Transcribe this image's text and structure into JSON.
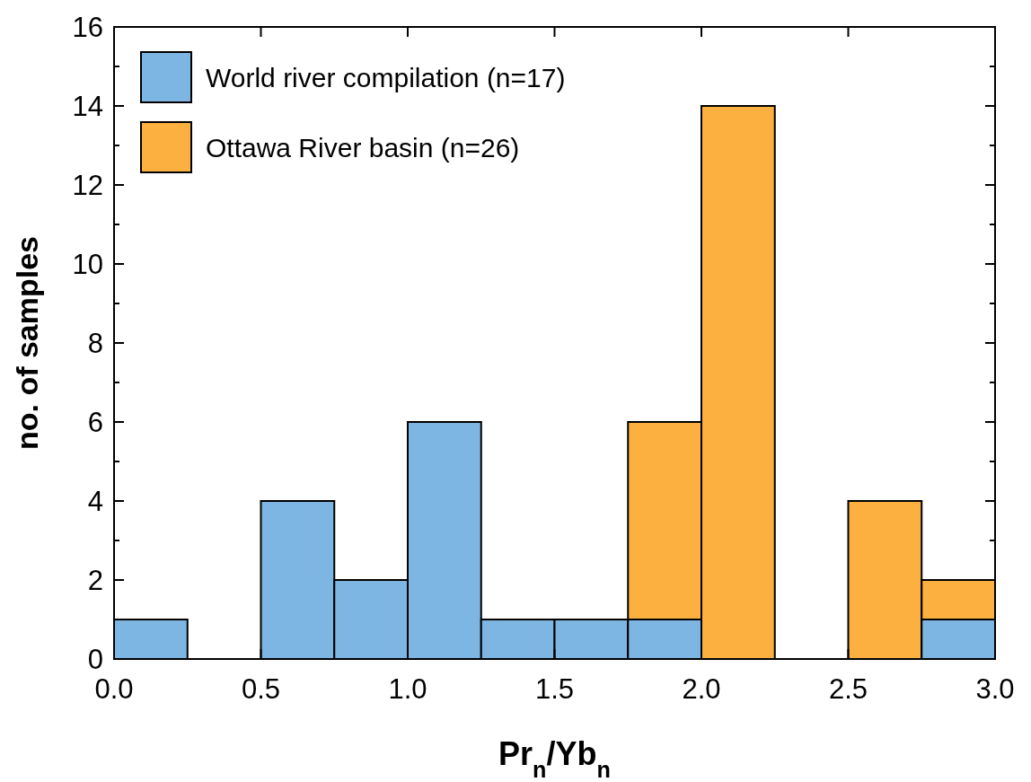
{
  "chart_data": {
    "type": "histogram",
    "xlabel": "Pr$_{n}$/Yb$_{n}$",
    "ylabel": "no. of samples",
    "bins": [
      0,
      0.25,
      0.5,
      0.75,
      1,
      1.25,
      1.5,
      1.75,
      2,
      2.25,
      2.5,
      2.75,
      3
    ],
    "series": [
      {
        "name": "World river compilation (n=17)",
        "color": "#7db6e3",
        "values": [
          1,
          0,
          4,
          2,
          6,
          1,
          1,
          1,
          0,
          0,
          0,
          1
        ]
      },
      {
        "name": "Ottawa River basin (n=26)",
        "color": "#fbb040",
        "values": [
          0,
          0,
          0,
          0,
          0,
          0,
          0,
          6,
          14,
          0,
          4,
          2
        ]
      }
    ],
    "xlim": [
      0,
      3
    ],
    "xticks": [
      {
        "value": 0,
        "label": "0.0"
      },
      {
        "value": 0.5,
        "label": "0.5"
      },
      {
        "value": 1,
        "label": "1.0"
      },
      {
        "value": 1.5,
        "label": "1.5"
      },
      {
        "value": 2,
        "label": "2.0"
      },
      {
        "value": 2.5,
        "label": "2.5"
      },
      {
        "value": 3,
        "label": "3.0"
      }
    ],
    "ylim": [
      0,
      16
    ],
    "yticks": [
      0,
      {
        "value": 1,
        "label": null
      },
      2,
      {
        "value": 3,
        "label": null
      },
      4,
      {
        "value": 5,
        "label": null
      },
      6,
      {
        "value": 7,
        "label": null
      },
      8,
      {
        "value": 9,
        "label": null
      },
      10,
      {
        "value": 11,
        "label": null
      },
      12,
      {
        "value": 13,
        "label": null
      },
      14,
      {
        "value": 15,
        "label": null
      },
      16
    ],
    "legend": "top left",
    "grid": false
  }
}
